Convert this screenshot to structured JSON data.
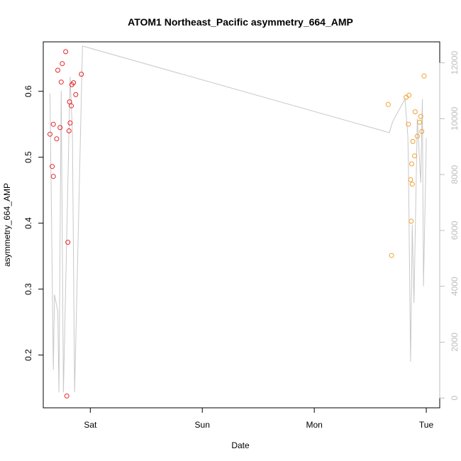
{
  "chart_data": {
    "type": "scatter",
    "title": "ATOM1 Northeast_Pacific asymmetry_664_AMP",
    "xlabel": "Date",
    "ylabel": "asymmetry_664_AMP",
    "x_ticks": [
      {
        "label": "Sat",
        "x": 1.0
      },
      {
        "label": "Sun",
        "x": 2.0
      },
      {
        "label": "Mon",
        "x": 3.0
      },
      {
        "label": "Tue",
        "x": 4.0
      }
    ],
    "xlim": [
      0.58,
      4.12
    ],
    "ylim": [
      0.12,
      0.675
    ],
    "y_ticks": [
      0.2,
      0.3,
      0.4,
      0.5,
      0.6
    ],
    "y2lim": [
      -350,
      12750
    ],
    "y2_ticks": [
      0,
      2000,
      4000,
      6000,
      8000,
      10000,
      12000
    ],
    "grid": false,
    "colors": {
      "series_1": "#e8242b",
      "series_2": "#f0a030",
      "line": "#c8c8c8",
      "right_axis": "#bdbdbd"
    },
    "series": [
      {
        "values": [
          [
            0.64,
            0.535
          ],
          [
            0.66,
            0.486
          ],
          [
            0.67,
            0.471
          ],
          [
            0.67,
            0.55
          ],
          [
            0.7,
            0.528
          ],
          [
            0.71,
            0.632
          ],
          [
            0.73,
            0.545
          ],
          [
            0.74,
            0.614
          ],
          [
            0.75,
            0.642
          ],
          [
            0.78,
            0.66
          ],
          [
            0.79,
            0.138
          ],
          [
            0.8,
            0.371
          ],
          [
            0.81,
            0.54
          ],
          [
            0.815,
            0.584
          ],
          [
            0.82,
            0.552
          ],
          [
            0.83,
            0.578
          ],
          [
            0.835,
            0.61
          ],
          [
            0.85,
            0.613
          ],
          [
            0.87,
            0.595
          ],
          [
            0.92,
            0.626
          ]
        ]
      },
      {
        "values": [
          [
            3.66,
            0.58
          ],
          [
            3.69,
            0.351
          ],
          [
            3.82,
            0.591
          ],
          [
            3.84,
            0.55
          ],
          [
            3.845,
            0.594
          ],
          [
            3.86,
            0.466
          ],
          [
            3.865,
            0.403
          ],
          [
            3.87,
            0.49
          ],
          [
            3.875,
            0.459
          ],
          [
            3.88,
            0.524
          ],
          [
            3.895,
            0.502
          ],
          [
            3.9,
            0.569
          ],
          [
            3.92,
            0.532
          ],
          [
            3.94,
            0.553
          ],
          [
            3.95,
            0.562
          ],
          [
            3.96,
            0.539
          ],
          [
            3.98,
            0.623
          ]
        ]
      }
    ],
    "line_series": {
      "axis": "right",
      "values": [
        [
          0.64,
          10900
        ],
        [
          0.67,
          1000
        ],
        [
          0.68,
          3700
        ],
        [
          0.71,
          3100
        ],
        [
          0.72,
          200
        ],
        [
          0.74,
          11000
        ],
        [
          0.76,
          200
        ],
        [
          0.82,
          11500
        ],
        [
          0.84,
          9500
        ],
        [
          0.86,
          200
        ],
        [
          0.93,
          12600
        ],
        [
          3.67,
          9500
        ],
        [
          3.7,
          9900
        ],
        [
          3.81,
          10700
        ],
        [
          3.835,
          9400
        ],
        [
          3.84,
          8500
        ],
        [
          3.86,
          1300
        ],
        [
          3.875,
          6200
        ],
        [
          3.89,
          3400
        ],
        [
          3.92,
          10000
        ],
        [
          3.95,
          7700
        ],
        [
          3.965,
          10700
        ],
        [
          3.975,
          4000
        ],
        [
          4.0,
          9300
        ]
      ]
    }
  }
}
